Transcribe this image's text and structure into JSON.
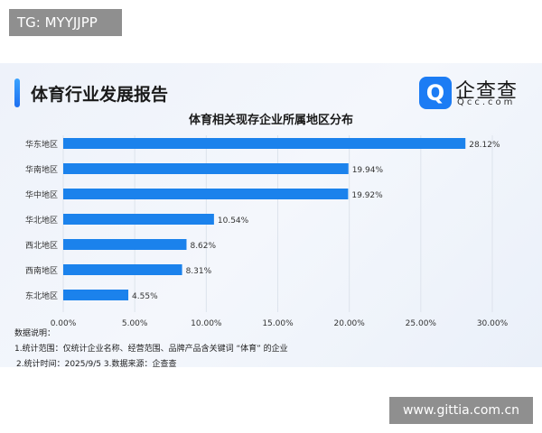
{
  "overlay": {
    "tg": "TG: MYYJJPP",
    "watermark": "www.gittia.com.cn"
  },
  "header": {
    "title": "体育行业发展报告",
    "brand": "企查查",
    "brand_sub": "Qcc.com",
    "logo_glyph": "Q"
  },
  "chart_data": {
    "type": "bar",
    "orientation": "horizontal",
    "title": "体育相关现存企业所属地区分布",
    "categories": [
      "华东地区",
      "华南地区",
      "华中地区",
      "华北地区",
      "西北地区",
      "西南地区",
      "东北地区"
    ],
    "values": [
      28.12,
      19.94,
      19.92,
      10.54,
      8.62,
      8.31,
      4.55
    ],
    "data_labels": [
      "28.12%",
      "19.94%",
      "19.92%",
      "10.54%",
      "8.62%",
      "8.31%",
      "4.55%"
    ],
    "xlim": [
      0,
      30
    ],
    "xticks": [
      0,
      5,
      10,
      15,
      20,
      25,
      30
    ],
    "xtick_labels": [
      "0.00%",
      "5.00%",
      "10.00%",
      "15.00%",
      "20.00%",
      "25.00%",
      "30.00%"
    ],
    "grid": "vertical",
    "bar_color": "#1b82ec"
  },
  "notes": {
    "heading": "数据说明：",
    "line1": "1.统计范围：仅统计企业名称、经营范围、品牌产品含关键词 “体育” 的企业",
    "line2": "2.统计时间：2025/9/5 3.数据来源：企查查"
  }
}
